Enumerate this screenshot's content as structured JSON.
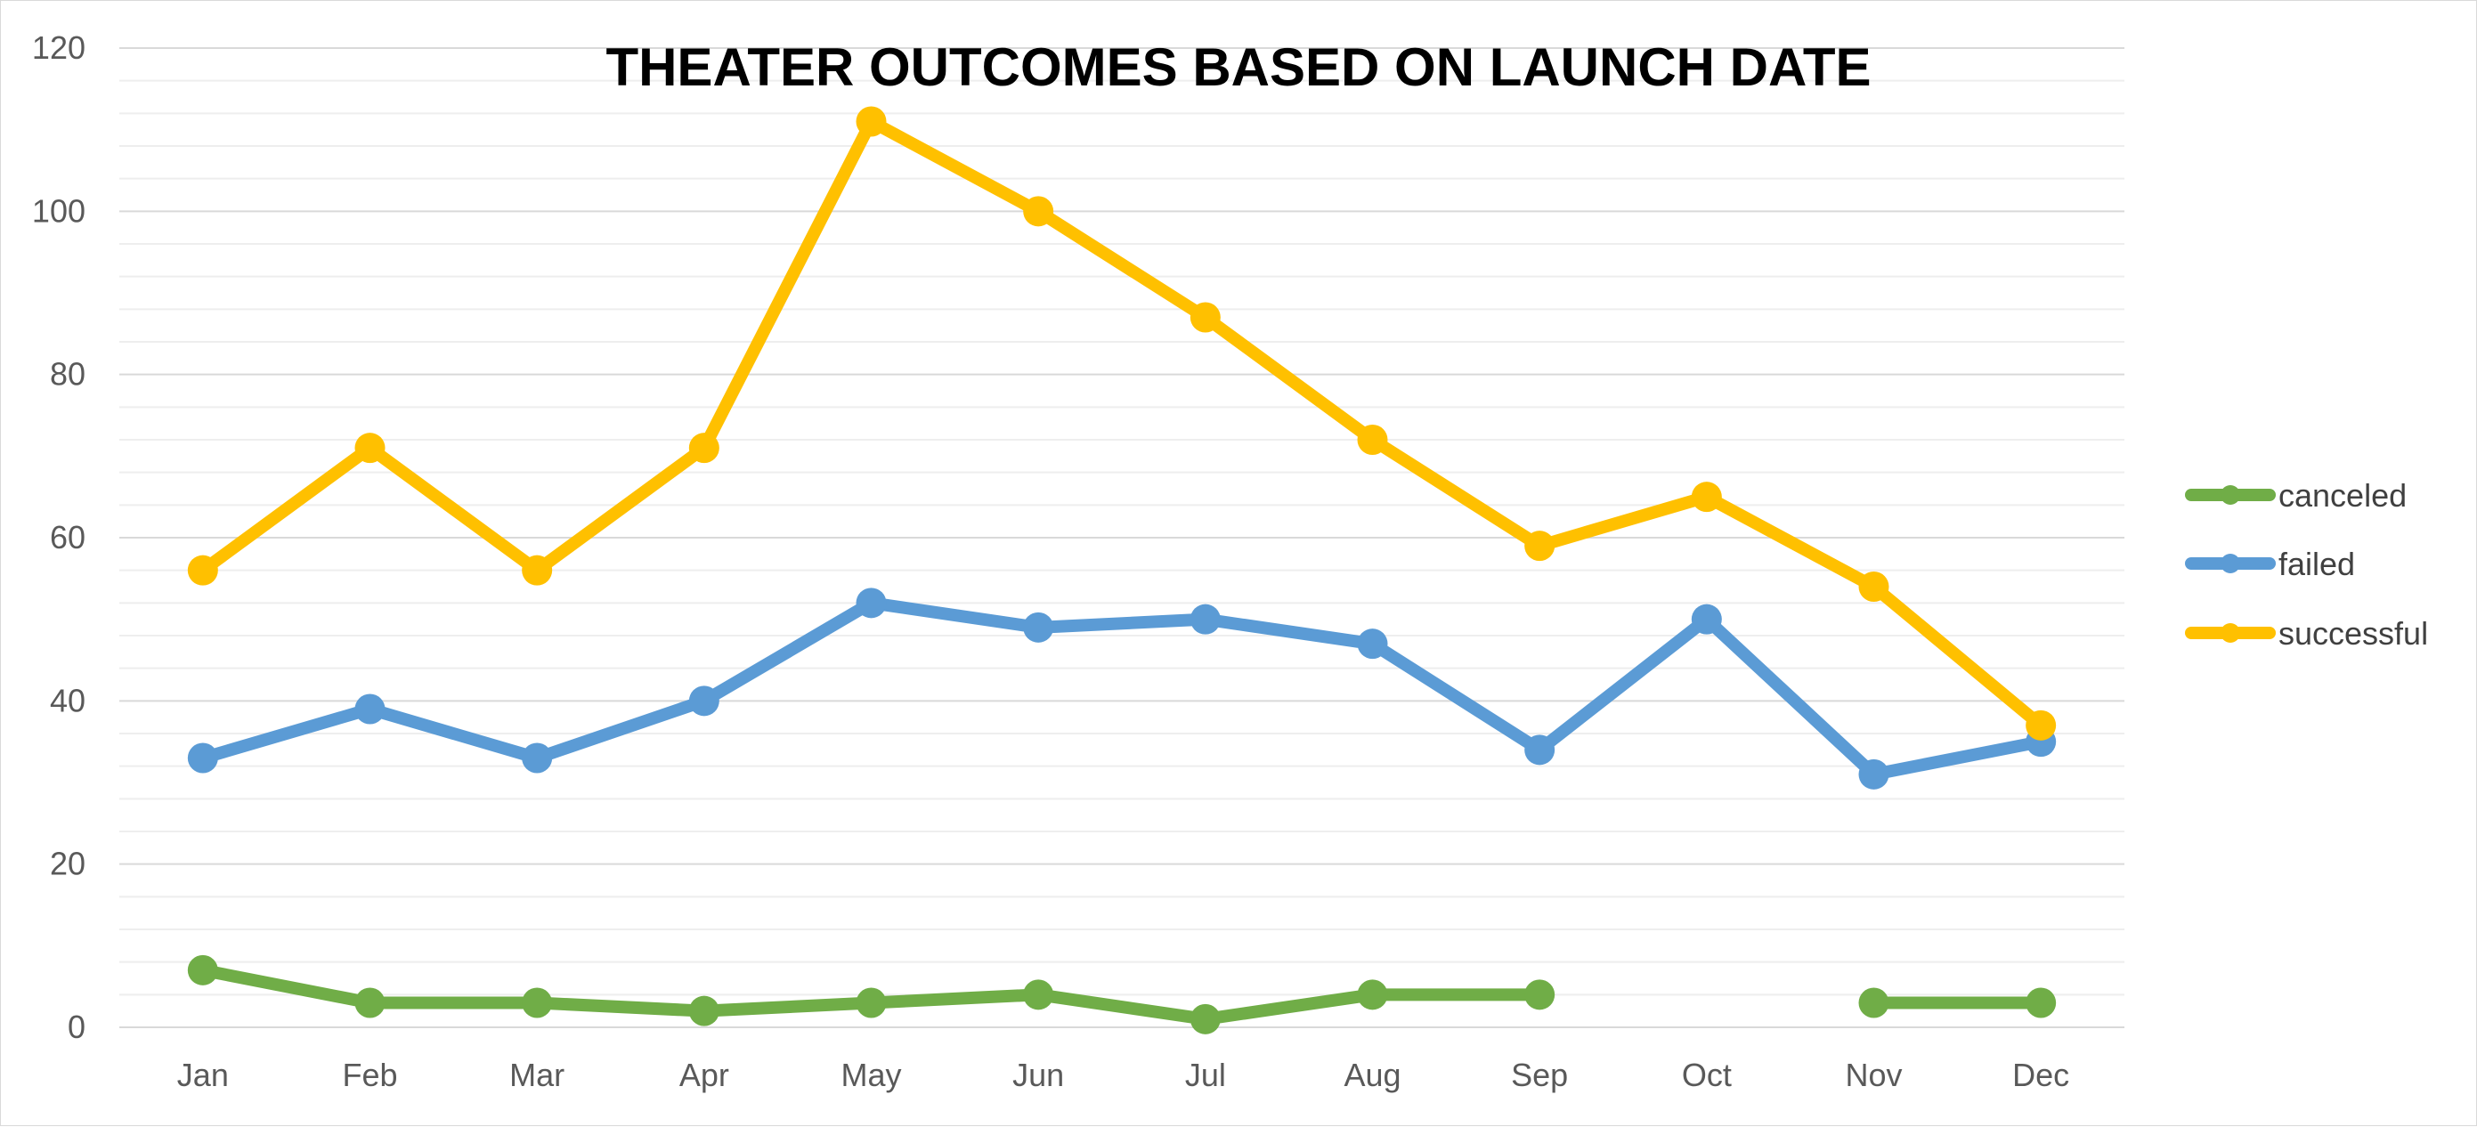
{
  "chart_data": {
    "type": "line",
    "title": "THEATER OUTCOMES BASED ON LAUNCH DATE",
    "xlabel": "",
    "ylabel": "",
    "categories": [
      "Jan",
      "Feb",
      "Mar",
      "Apr",
      "May",
      "Jun",
      "Jul",
      "Aug",
      "Sep",
      "Oct",
      "Nov",
      "Dec"
    ],
    "ylim": [
      0,
      120
    ],
    "yticks": [
      "0",
      "20",
      "40",
      "60",
      "80",
      "100",
      "120"
    ],
    "grid": true,
    "legend_position": "right",
    "series": [
      {
        "name": "canceled",
        "color": "#70ad47",
        "values": [
          7,
          3,
          3,
          2,
          3,
          4,
          1,
          4,
          4,
          null,
          3,
          3
        ]
      },
      {
        "name": "failed",
        "color": "#5b9bd5",
        "values": [
          33,
          39,
          33,
          40,
          52,
          49,
          50,
          47,
          34,
          50,
          31,
          35
        ]
      },
      {
        "name": "successful",
        "color": "#ffc000",
        "values": [
          56,
          71,
          56,
          71,
          111,
          100,
          87,
          72,
          59,
          65,
          54,
          37
        ]
      }
    ]
  }
}
